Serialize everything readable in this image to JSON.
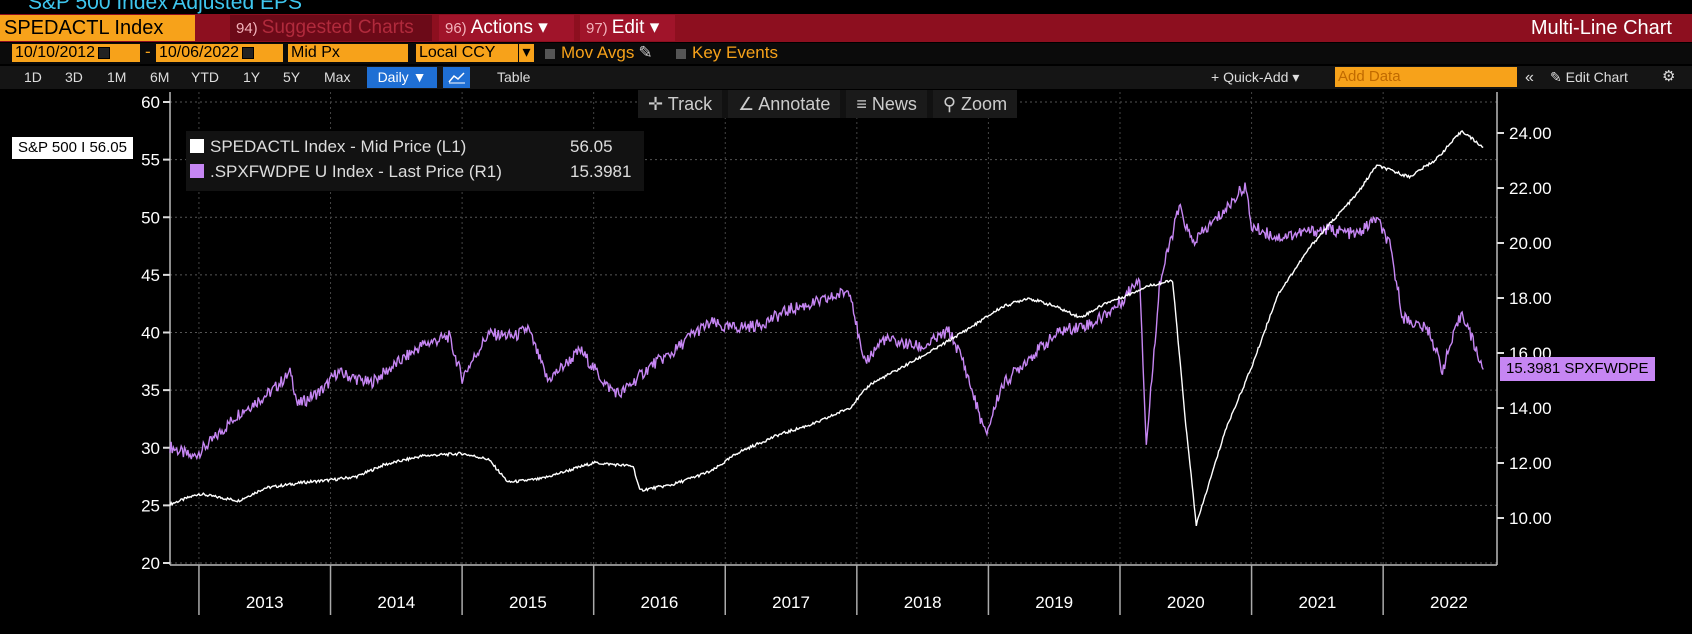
{
  "window": {
    "title": "S&P 500 Index Adjusted EPS",
    "chart_type_label": "Multi-Line Chart"
  },
  "header": {
    "ticker": "SPEDACTL Index",
    "tabs": [
      {
        "num": "94)",
        "label": "Suggested Charts"
      },
      {
        "num": "96)",
        "label": "Actions ▾"
      },
      {
        "num": "97)",
        "label": "Edit ▾"
      }
    ]
  },
  "controls": {
    "start_date": "10/10/2012",
    "end_date": "10/06/2022",
    "dash": "-",
    "price_field": "Mid Px",
    "currency": "Local CCY",
    "mov_avgs": "Mov Avgs",
    "key_events": "Key Events",
    "ranges": [
      "1D",
      "3D",
      "1M",
      "6M",
      "YTD",
      "1Y",
      "5Y",
      "Max"
    ],
    "frequency": "Daily ▼",
    "table": "Table",
    "quick_add": "+ Quick-Add ▾",
    "add_data_placeholder": "Add Data",
    "collapse": "«",
    "edit_chart": "✎ Edit Chart",
    "gear": "⚙"
  },
  "toolbar": {
    "track": "Track",
    "annotate": "Annotate",
    "news": "News",
    "zoom": "Zoom"
  },
  "icons": [
    "crosshair-icon",
    "annotate-pencil-icon",
    "news-lines-icon",
    "zoom-magnifier-icon",
    "calendar-icon",
    "gear-icon",
    "line-chart-icon"
  ],
  "colors": {
    "eps_line": "#ffffff",
    "pe_line": "#c686f3",
    "accent_orange": "#f7a21a",
    "header_red": "#8d0f1f"
  },
  "chart_data": {
    "type": "line",
    "x_years": [
      "2013",
      "2014",
      "2015",
      "2016",
      "2017",
      "2018",
      "2019",
      "2020",
      "2021",
      "2022"
    ],
    "left_axis": {
      "ticks": [
        20,
        25,
        30,
        35,
        40,
        45,
        50,
        55,
        60
      ],
      "range": [
        20,
        60
      ]
    },
    "right_axis": {
      "ticks": [
        "10.00",
        "12.00",
        "14.00",
        "16.00",
        "18.00",
        "20.00",
        "22.00",
        "24.00"
      ],
      "range": [
        8.3,
        25.8
      ]
    },
    "grid": true,
    "series": [
      {
        "name": "SPEDACTL Index - Mid Price (L1)",
        "last": "56.05",
        "axis": "left",
        "points": [
          [
            2012.78,
            25.1
          ],
          [
            2013.0,
            26.0
          ],
          [
            2013.3,
            25.4
          ],
          [
            2013.5,
            26.5
          ],
          [
            2013.8,
            27.0
          ],
          [
            2014.0,
            27.2
          ],
          [
            2014.2,
            27.5
          ],
          [
            2014.4,
            28.5
          ],
          [
            2014.7,
            29.3
          ],
          [
            2015.0,
            29.5
          ],
          [
            2015.2,
            29.0
          ],
          [
            2015.35,
            27.0
          ],
          [
            2015.6,
            27.3
          ],
          [
            2015.8,
            28.0
          ],
          [
            2016.0,
            28.7
          ],
          [
            2016.3,
            28.4
          ],
          [
            2016.35,
            26.3
          ],
          [
            2016.6,
            26.8
          ],
          [
            2016.9,
            28.0
          ],
          [
            2017.1,
            29.6
          ],
          [
            2017.4,
            31.1
          ],
          [
            2017.7,
            32.2
          ],
          [
            2017.95,
            33.5
          ],
          [
            2018.1,
            35.5
          ],
          [
            2018.3,
            36.7
          ],
          [
            2018.6,
            38.6
          ],
          [
            2018.9,
            40.7
          ],
          [
            2019.1,
            42.2
          ],
          [
            2019.3,
            43.0
          ],
          [
            2019.5,
            42.3
          ],
          [
            2019.7,
            41.3
          ],
          [
            2019.9,
            42.6
          ],
          [
            2020.05,
            43.2
          ],
          [
            2020.2,
            44.0
          ],
          [
            2020.4,
            44.5
          ],
          [
            2020.5,
            32.0
          ],
          [
            2020.58,
            23.3
          ],
          [
            2020.8,
            31.5
          ],
          [
            2021.0,
            37.0
          ],
          [
            2021.2,
            43.3
          ],
          [
            2021.45,
            47.5
          ],
          [
            2021.6,
            49.5
          ],
          [
            2021.8,
            52.0
          ],
          [
            2021.95,
            54.5
          ],
          [
            2022.2,
            53.5
          ],
          [
            2022.4,
            55.0
          ],
          [
            2022.6,
            57.5
          ],
          [
            2022.76,
            56.05
          ]
        ]
      },
      {
        "name": ".SPXFWDPE U Index - Last Price (R1)",
        "last": "15.3981",
        "axis": "right",
        "points": [
          [
            2012.78,
            12.6
          ],
          [
            2012.95,
            12.2
          ],
          [
            2013.1,
            12.8
          ],
          [
            2013.3,
            13.8
          ],
          [
            2013.55,
            14.6
          ],
          [
            2013.7,
            15.3
          ],
          [
            2013.75,
            14.1
          ],
          [
            2013.95,
            14.7
          ],
          [
            2014.05,
            15.3
          ],
          [
            2014.3,
            14.9
          ],
          [
            2014.5,
            15.6
          ],
          [
            2014.7,
            16.3
          ],
          [
            2014.9,
            16.6
          ],
          [
            2015.0,
            15.1
          ],
          [
            2015.2,
            16.7
          ],
          [
            2015.4,
            16.6
          ],
          [
            2015.5,
            16.9
          ],
          [
            2015.65,
            15.0
          ],
          [
            2015.9,
            16.1
          ],
          [
            2016.1,
            14.8
          ],
          [
            2016.2,
            14.5
          ],
          [
            2016.45,
            15.6
          ],
          [
            2016.6,
            16.0
          ],
          [
            2016.75,
            16.7
          ],
          [
            2016.9,
            17.1
          ],
          [
            2017.0,
            16.9
          ],
          [
            2017.25,
            17.0
          ],
          [
            2017.5,
            17.6
          ],
          [
            2017.75,
            17.9
          ],
          [
            2017.95,
            18.3
          ],
          [
            2018.05,
            15.6
          ],
          [
            2018.2,
            16.5
          ],
          [
            2018.5,
            16.2
          ],
          [
            2018.7,
            16.8
          ],
          [
            2018.8,
            15.8
          ],
          [
            2018.98,
            13.0
          ],
          [
            2019.1,
            14.8
          ],
          [
            2019.3,
            15.8
          ],
          [
            2019.55,
            16.8
          ],
          [
            2019.8,
            17.1
          ],
          [
            2020.0,
            17.8
          ],
          [
            2020.15,
            18.8
          ],
          [
            2020.2,
            12.6
          ],
          [
            2020.3,
            18.5
          ],
          [
            2020.45,
            21.3
          ],
          [
            2020.55,
            20.0
          ],
          [
            2020.8,
            21.2
          ],
          [
            2020.95,
            22.1
          ],
          [
            2021.0,
            20.6
          ],
          [
            2021.2,
            20.2
          ],
          [
            2021.4,
            20.4
          ],
          [
            2021.6,
            20.5
          ],
          [
            2021.8,
            20.3
          ],
          [
            2021.95,
            20.9
          ],
          [
            2022.05,
            19.9
          ],
          [
            2022.15,
            17.3
          ],
          [
            2022.35,
            16.8
          ],
          [
            2022.45,
            15.4
          ],
          [
            2022.6,
            17.5
          ],
          [
            2022.7,
            16.2
          ],
          [
            2022.76,
            15.4
          ]
        ]
      }
    ]
  },
  "labels": {
    "left_current": "S&P 500 I 56.05",
    "right_current": "15.3981 SPXFWDPE"
  }
}
